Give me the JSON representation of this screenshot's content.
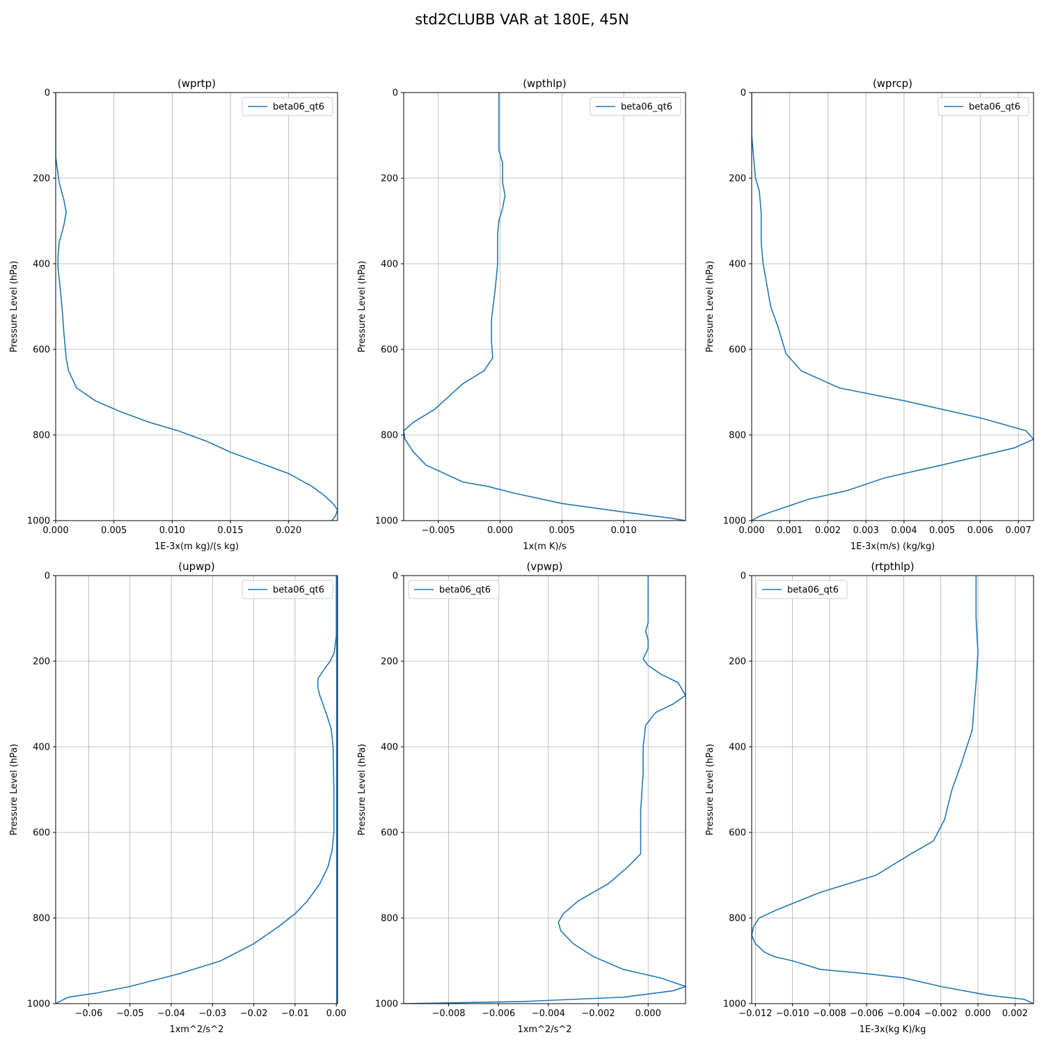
{
  "suptitle": "std2CLUBB VAR at 180E, 45N",
  "chart_data": [
    {
      "type": "line",
      "title": "(wprtp)",
      "xlabel": "1E-3x(m kg)/(s kg)",
      "ylabel": "Pressure Level (hPa)",
      "xlim": [
        0,
        0.0242
      ],
      "ylim": [
        1000,
        0
      ],
      "xticks": [
        0,
        0.005,
        0.01,
        0.015,
        0.02
      ],
      "xtick_labels": [
        "0.000",
        "0.005",
        "0.010",
        "0.015",
        "0.020"
      ],
      "yticks": [
        0,
        200,
        400,
        600,
        800,
        1000
      ],
      "grid": true,
      "legend_loc": "upper right",
      "series": [
        {
          "name": "beta06_qt6",
          "color": "#1f77b4",
          "x": [
            0,
            0,
            0,
            0,
            0,
            0.0003,
            0.0007,
            0.0009,
            0.0007,
            0.0003,
            0.0002,
            0.0002,
            0.0004,
            0.0006,
            0.0007,
            0.0009,
            0.0011,
            0.0018,
            0.0034,
            0.0055,
            0.008,
            0.0105,
            0.013,
            0.015,
            0.018,
            0.02,
            0.022,
            0.023,
            0.0238,
            0.0242,
            0.024,
            0.0237
          ],
          "y": [
            0,
            50,
            100,
            130,
            150,
            210,
            250,
            280,
            310,
            350,
            380,
            410,
            460,
            520,
            560,
            620,
            650,
            690,
            720,
            745,
            770,
            790,
            815,
            840,
            870,
            890,
            920,
            940,
            960,
            975,
            990,
            1000
          ]
        }
      ]
    },
    {
      "type": "line",
      "title": "(wpthlp)",
      "xlabel": "1x(m K)/s",
      "ylabel": "Pressure Level (hPa)",
      "xlim": [
        -0.0078,
        0.015
      ],
      "ylim": [
        1000,
        0
      ],
      "xticks": [
        -0.005,
        0.0,
        0.005,
        0.01
      ],
      "xtick_labels": [
        "−0.005",
        "0.000",
        "0.005",
        "0.010"
      ],
      "yticks": [
        0,
        200,
        400,
        600,
        800,
        1000
      ],
      "grid": true,
      "legend_loc": "upper right",
      "series": [
        {
          "name": "beta06_qt6",
          "color": "#1f77b4",
          "x": [
            -0.0001,
            -0.0001,
            -0.0001,
            -0.0001,
            0.0002,
            0.0002,
            0.0004,
            0.0002,
            -0.0001,
            -0.0002,
            -0.0002,
            -0.0004,
            -0.0007,
            -0.0007,
            -0.0006,
            -0.0013,
            -0.003,
            -0.0053,
            -0.007,
            -0.0078,
            -0.0077,
            -0.007,
            -0.006,
            -0.0045,
            -0.003,
            -0.001,
            0.001,
            0.005,
            0.01,
            0.014,
            0.015
          ],
          "y": [
            0,
            50,
            100,
            135,
            165,
            210,
            240,
            270,
            300,
            330,
            400,
            460,
            530,
            580,
            620,
            650,
            680,
            740,
            770,
            790,
            810,
            840,
            870,
            890,
            910,
            920,
            935,
            960,
            980,
            995,
            1000
          ]
        }
      ]
    },
    {
      "type": "line",
      "title": "(wprcp)",
      "xlabel": "1E-3x(m/s) (kg/kg)",
      "ylabel": "Pressure Level (hPa)",
      "xlim": [
        0,
        0.0074
      ],
      "ylim": [
        1000,
        0
      ],
      "xticks": [
        0,
        0.001,
        0.002,
        0.003,
        0.004,
        0.005,
        0.006,
        0.007
      ],
      "xtick_labels": [
        "0.000",
        "0.001",
        "0.002",
        "0.003",
        "0.004",
        "0.005",
        "0.006",
        "0.007"
      ],
      "yticks": [
        0,
        200,
        400,
        600,
        800,
        1000
      ],
      "grid": true,
      "legend_loc": "upper right",
      "series": [
        {
          "name": "beta06_qt6",
          "color": "#1f77b4",
          "x": [
            0,
            0,
            0,
            5e-05,
            0.0001,
            0.0002,
            0.00025,
            0.00025,
            0.0003,
            0.0004,
            0.0005,
            0.0007,
            0.0009,
            0.0013,
            0.0023,
            0.004,
            0.006,
            0.0072,
            0.0074,
            0.0069,
            0.005,
            0.0035,
            0.0025,
            0.0015,
            0.001,
            0.0005,
            0.0002,
            0
          ],
          "y": [
            0,
            50,
            100,
            150,
            200,
            230,
            280,
            350,
            400,
            450,
            500,
            550,
            610,
            650,
            690,
            720,
            760,
            790,
            810,
            830,
            870,
            900,
            930,
            950,
            965,
            980,
            990,
            1000
          ]
        }
      ]
    },
    {
      "type": "line",
      "title": "(upwp)",
      "xlabel": "1xm^2/s^2",
      "ylabel": "Pressure Level (hPa)",
      "xlim": [
        -0.068,
        0.0003
      ],
      "ylim": [
        1000,
        0
      ],
      "xticks": [
        -0.06,
        -0.05,
        -0.04,
        -0.03,
        -0.02,
        -0.01,
        0.0
      ],
      "xtick_labels": [
        "−0.06",
        "−0.05",
        "−0.04",
        "−0.03",
        "−0.02",
        "−0.01",
        "0.00"
      ],
      "yticks": [
        0,
        200,
        400,
        600,
        800,
        1000
      ],
      "grid": true,
      "legend_loc": "upper right",
      "series": [
        {
          "name": "beta06_qt6",
          "color": "#1f77b4",
          "x": [
            0,
            0,
            0,
            -0.0005,
            -0.0015,
            -0.003,
            -0.0044,
            -0.0045,
            -0.004,
            -0.0025,
            -0.0012,
            -0.0008,
            -0.0006,
            -0.0006,
            -0.001,
            -0.002,
            -0.004,
            -0.007,
            -0.01,
            -0.014,
            -0.02,
            -0.028,
            -0.038,
            -0.05,
            -0.058,
            -0.065,
            -0.067,
            -0.068
          ],
          "y": [
            0,
            100,
            140,
            180,
            200,
            220,
            240,
            260,
            280,
            320,
            360,
            400,
            500,
            600,
            640,
            680,
            720,
            760,
            790,
            820,
            860,
            900,
            930,
            960,
            975,
            985,
            995,
            1000
          ]
        },
        {
          "name": "",
          "color": "#1f77b4",
          "x": [
            0.0001,
            0.0001
          ],
          "y": [
            0,
            1000
          ]
        }
      ]
    },
    {
      "type": "line",
      "title": "(vpwp)",
      "xlabel": "1xm^2/s^2",
      "ylabel": "Pressure Level (hPa)",
      "xlim": [
        -0.0098,
        0.0015
      ],
      "ylim": [
        1000,
        0
      ],
      "xticks": [
        -0.008,
        -0.006,
        -0.004,
        -0.002,
        0.0
      ],
      "xtick_labels": [
        "−0.008",
        "−0.006",
        "−0.004",
        "−0.002",
        "0.000"
      ],
      "yticks": [
        0,
        200,
        400,
        600,
        800,
        1000
      ],
      "grid": true,
      "legend_loc": "upper left",
      "series": [
        {
          "name": "beta06_qt6",
          "color": "#1f77b4",
          "x": [
            0,
            0,
            0,
            -0.0001,
            0,
            0,
            -0.0002,
            0,
            0.0005,
            0.0012,
            0.0015,
            0.001,
            0.0003,
            -0.0001,
            -0.0002,
            -0.0002,
            -0.0003,
            -0.0003,
            -0.0003,
            -0.0008,
            -0.0016,
            -0.0028,
            -0.0034,
            -0.0036,
            -0.0035,
            -0.003,
            -0.0022,
            -0.001,
            0.0005,
            0.0015,
            0.001,
            -0.001,
            -0.005,
            -0.0098
          ],
          "y": [
            0,
            60,
            110,
            130,
            150,
            170,
            195,
            210,
            230,
            250,
            280,
            300,
            320,
            350,
            400,
            460,
            550,
            600,
            650,
            680,
            720,
            760,
            790,
            810,
            830,
            860,
            890,
            920,
            940,
            960,
            970,
            985,
            995,
            1000
          ]
        }
      ]
    },
    {
      "type": "line",
      "title": "(rtpthlp)",
      "xlabel": "1E-3x(kg K)/kg",
      "ylabel": "Pressure Level (hPa)",
      "xlim": [
        -0.0122,
        0.003
      ],
      "ylim": [
        1000,
        0
      ],
      "xticks": [
        -0.012,
        -0.01,
        -0.008,
        -0.006,
        -0.004,
        -0.002,
        0.0,
        0.002
      ],
      "xtick_labels": [
        "−0.012",
        "−0.010",
        "−0.008",
        "−0.006",
        "−0.004",
        "−0.002",
        "0.000",
        "0.002"
      ],
      "yticks": [
        0,
        200,
        400,
        600,
        800,
        1000
      ],
      "grid": true,
      "legend_loc": "upper left",
      "series": [
        {
          "name": "beta06_qt6",
          "color": "#1f77b4",
          "x": [
            -0.0001,
            -0.0001,
            0,
            -0.0001,
            -0.0002,
            -0.0003,
            -0.0006,
            -0.0009,
            -0.0014,
            -0.0018,
            -0.0024,
            -0.0036,
            -0.0055,
            -0.0085,
            -0.0108,
            -0.0118,
            -0.0121,
            -0.0122,
            -0.012,
            -0.0115,
            -0.011,
            -0.01,
            -0.0085,
            -0.006,
            -0.004,
            -0.002,
            0.0005,
            0.0025,
            0.003
          ],
          "y": [
            0,
            100,
            180,
            250,
            300,
            360,
            400,
            440,
            500,
            570,
            620,
            650,
            700,
            740,
            780,
            800,
            820,
            840,
            860,
            880,
            890,
            900,
            920,
            930,
            940,
            960,
            980,
            990,
            1000
          ]
        }
      ]
    }
  ]
}
